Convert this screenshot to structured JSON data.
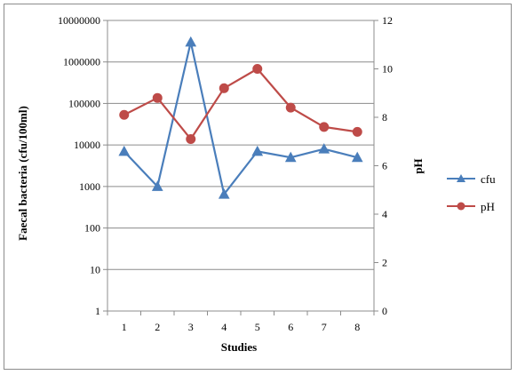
{
  "chart_data": {
    "type": "line",
    "xlabel": "Studies",
    "ylabel_left": "Faecal bacteria (cfu/100ml)",
    "ylabel_right": "pH",
    "categories": [
      "1",
      "2",
      "3",
      "4",
      "5",
      "6",
      "7",
      "8"
    ],
    "y_left_scale": "log",
    "y_left_range": [
      1,
      10000000
    ],
    "y_left_ticks": [
      "1",
      "10",
      "100",
      "1000",
      "10000",
      "100000",
      "1000000",
      "10000000"
    ],
    "y_right_range": [
      0,
      12
    ],
    "y_right_ticks": [
      "0",
      "2",
      "4",
      "6",
      "8",
      "10",
      "12"
    ],
    "grid": "horizontal",
    "legend_position": "right",
    "series": [
      {
        "name": "cfu",
        "axis": "left",
        "marker": "triangle",
        "color": "#4a7ebb",
        "values": [
          7000,
          1000,
          3000000,
          650,
          7000,
          5000,
          8000,
          5000
        ]
      },
      {
        "name": "pH",
        "axis": "right",
        "marker": "circle",
        "color": "#be4b48",
        "values": [
          8.1,
          8.8,
          7.1,
          9.2,
          10.0,
          8.4,
          7.6,
          7.4
        ]
      }
    ]
  }
}
